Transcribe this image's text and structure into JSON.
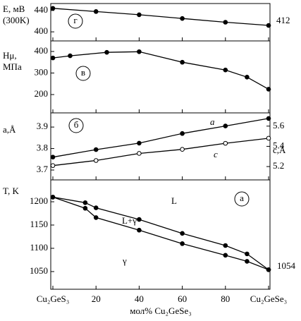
{
  "chart_data": [
    {
      "type": "line",
      "ylabel": [
        "Е, мВ",
        "(300K)"
      ],
      "annotations": [
        "г",
        "412"
      ],
      "x": [
        0,
        20,
        40,
        60,
        80,
        100
      ],
      "series": [
        {
          "color": "#000000",
          "marker": "filled",
          "values": [
            444,
            438,
            432,
            425,
            418,
            412
          ]
        }
      ],
      "ylim": [
        383,
        453
      ],
      "yticks": [
        400,
        440
      ]
    },
    {
      "type": "line",
      "ylabel": [
        "Hμ,",
        "МПа"
      ],
      "annotations": [
        "в"
      ],
      "x": [
        0,
        8,
        25,
        40,
        60,
        80,
        90,
        100
      ],
      "series": [
        {
          "color": "#000000",
          "marker": "filled",
          "values": [
            370,
            380,
            396,
            399,
            350,
            314,
            281,
            225
          ]
        }
      ],
      "ylim": [
        115,
        449
      ],
      "yticks": [
        200,
        300,
        400
      ]
    },
    {
      "type": "line",
      "ylabel": [
        "a,Å"
      ],
      "y2label": "c,Å",
      "annotations": [
        "б"
      ],
      "x": [
        0,
        20,
        40,
        60,
        80,
        100
      ],
      "series": [
        {
          "name": "a",
          "color": "#000000",
          "marker": "filled",
          "values": [
            3.76,
            3.795,
            3.825,
            3.87,
            3.905,
            3.94
          ]
        },
        {
          "name": "c",
          "color": "#000000",
          "marker": "open",
          "axis": "y2",
          "values": [
            5.21,
            5.26,
            5.33,
            5.37,
            5.43,
            5.48
          ]
        }
      ],
      "ylim": [
        3.654,
        3.966
      ],
      "yticks": [
        3.7,
        3.8,
        3.9
      ],
      "y2lim": [
        5.068,
        5.731
      ],
      "y2ticks": [
        5.2,
        5.4,
        5.6
      ]
    },
    {
      "type": "line",
      "ylabel": [
        "T, K"
      ],
      "xlabel": "мол% Cu₂GeSe₃",
      "annotations": [
        "а",
        "L",
        "L+γ",
        "γ",
        "1054"
      ],
      "x": [
        0,
        15,
        20,
        40,
        60,
        80,
        90,
        100
      ],
      "series": [
        {
          "color": "#000000",
          "marker": "filled",
          "values": [
            1210,
            1198,
            1187,
            1162,
            1132,
            1106,
            1088,
            1054
          ]
        },
        {
          "color": "#000000",
          "marker": "filled",
          "values": [
            1210,
            1186,
            1166,
            1139,
            1110,
            1085,
            1072,
            1054
          ]
        }
      ],
      "ylim": [
        1012,
        1247
      ],
      "yticks": [
        1050,
        1100,
        1150,
        1200
      ],
      "xlim": [
        0,
        100
      ],
      "xticks": [
        {
          "value": 0,
          "label": "Cu₂GeS₃"
        },
        20,
        40,
        60,
        80,
        {
          "value": 100,
          "label": "Cu₂GeSe₃"
        }
      ]
    }
  ]
}
